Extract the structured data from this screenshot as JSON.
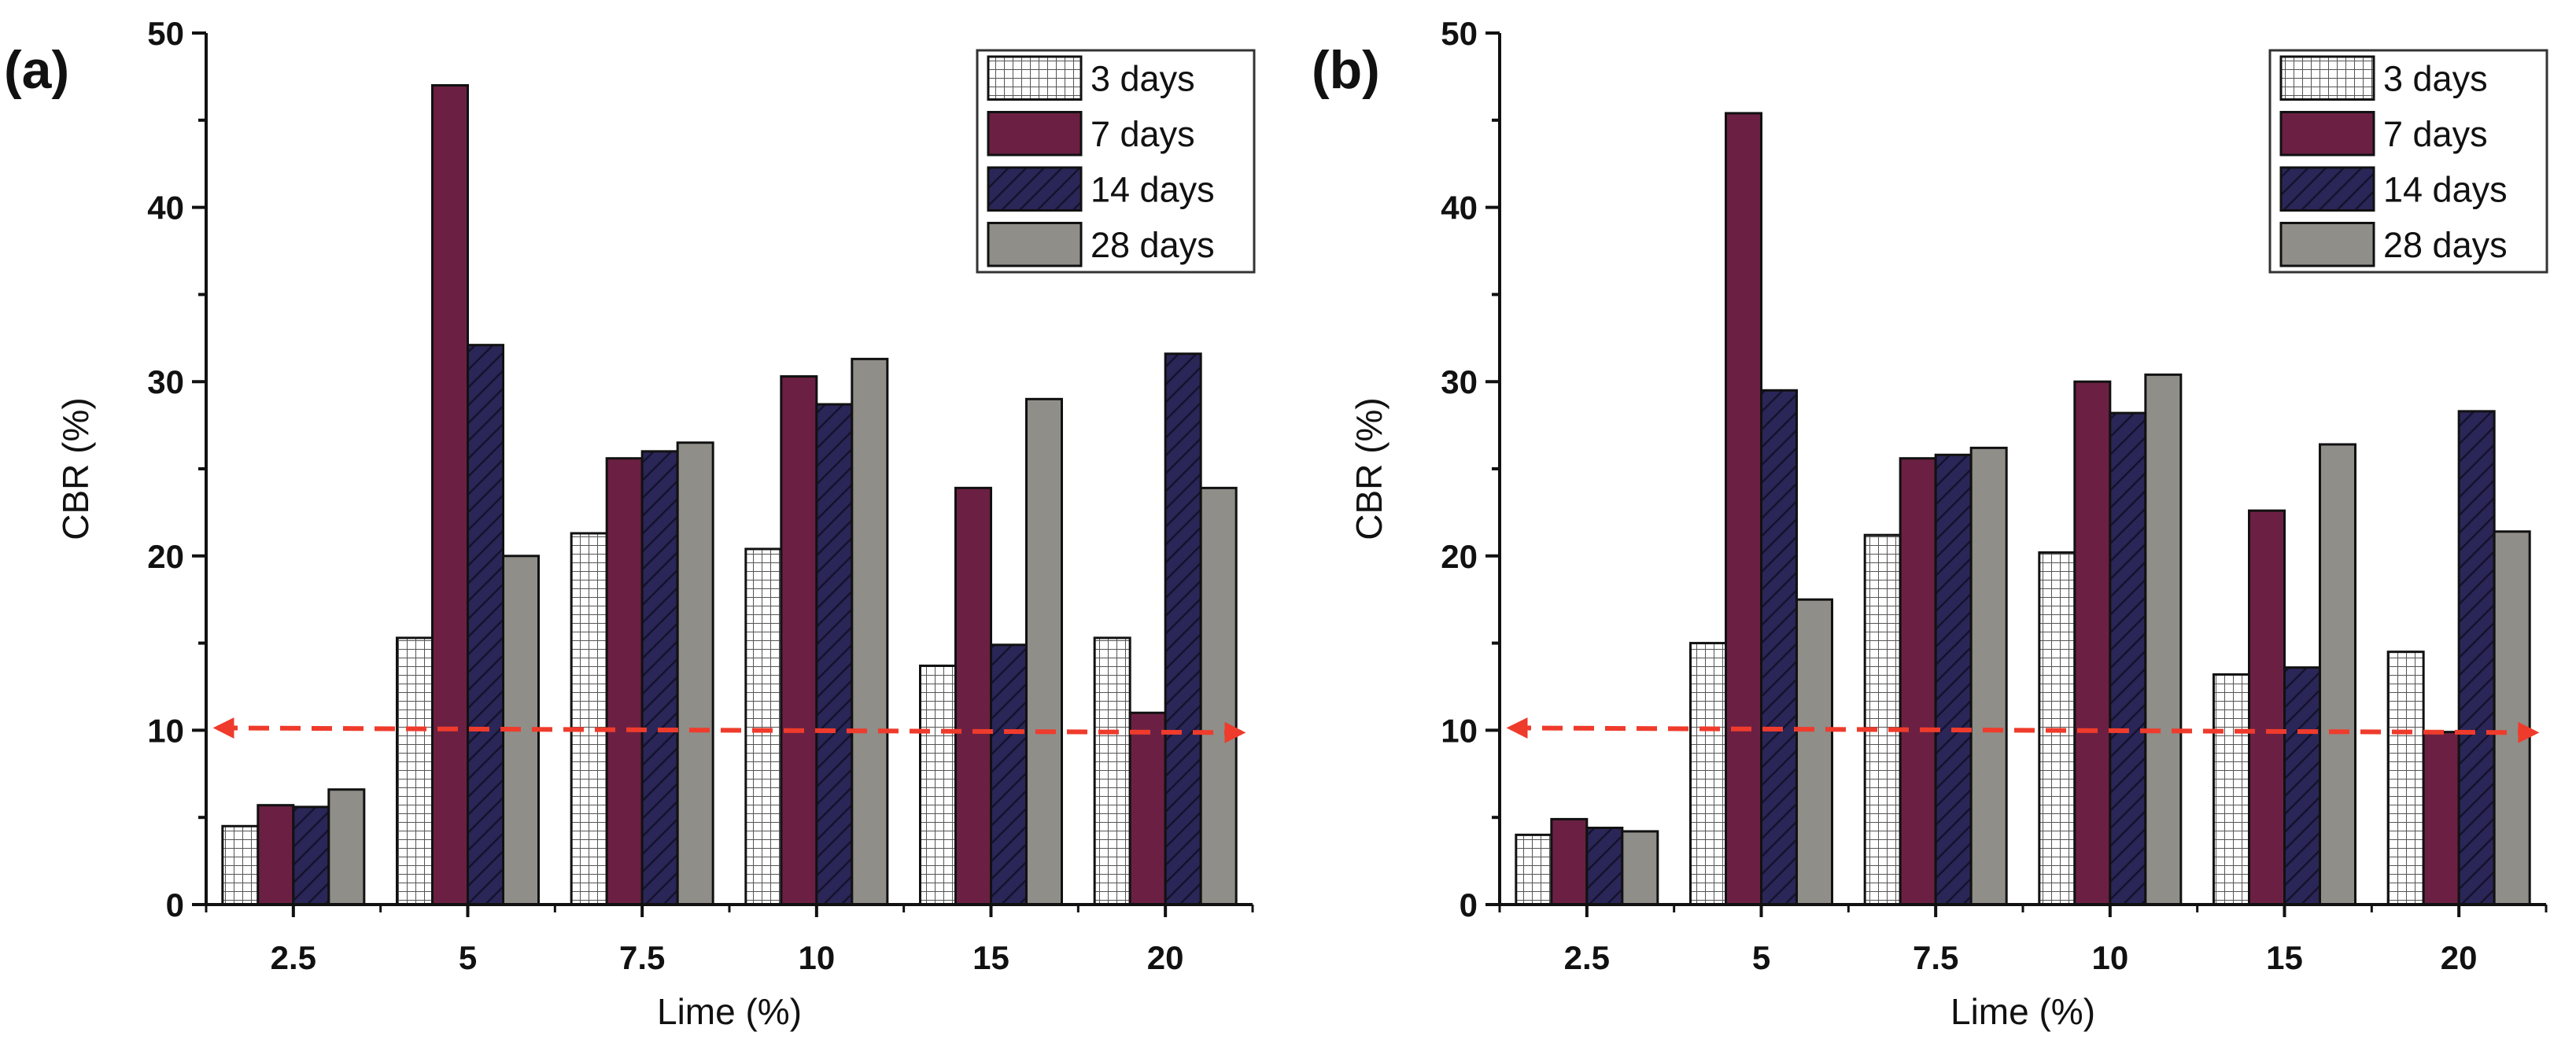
{
  "chart_data": [
    {
      "type": "bar",
      "panel_label": "(a)",
      "title": "",
      "xlabel": "Lime (%)",
      "ylabel": "CBR (%)",
      "ylim": [
        0,
        50
      ],
      "yticks": [
        "0",
        "10",
        "20",
        "30",
        "40",
        "50"
      ],
      "categories": [
        "2.5",
        "5",
        "7.5",
        "10",
        "15",
        "20"
      ],
      "series": [
        {
          "name": "3 days",
          "values": [
            4.5,
            15.3,
            21.3,
            20.4,
            13.7,
            15.3
          ]
        },
        {
          "name": "7 days",
          "values": [
            5.7,
            47.0,
            25.6,
            30.3,
            23.9,
            11.0
          ]
        },
        {
          "name": "14 days",
          "values": [
            5.6,
            32.1,
            26.0,
            28.7,
            14.9,
            31.6
          ]
        },
        {
          "name": "28 days",
          "values": [
            6.6,
            20.0,
            26.5,
            31.3,
            29.0,
            23.9
          ]
        }
      ],
      "reference_line": {
        "value": 10,
        "style": "dashed",
        "arrows": "both"
      },
      "legend_position": "top-right"
    },
    {
      "type": "bar",
      "panel_label": "(b)",
      "title": "",
      "xlabel": "Lime (%)",
      "ylabel": "CBR (%)",
      "ylim": [
        0,
        50
      ],
      "yticks": [
        "0",
        "10",
        "20",
        "30",
        "40",
        "50"
      ],
      "categories": [
        "2.5",
        "5",
        "7.5",
        "10",
        "15",
        "20"
      ],
      "series": [
        {
          "name": "3 days",
          "values": [
            4.0,
            15.0,
            21.2,
            20.2,
            13.2,
            14.5
          ]
        },
        {
          "name": "7 days",
          "values": [
            4.9,
            45.4,
            25.6,
            30.0,
            22.6,
            9.9
          ]
        },
        {
          "name": "14 days",
          "values": [
            4.4,
            29.5,
            25.8,
            28.2,
            13.6,
            28.3
          ]
        },
        {
          "name": "28 days",
          "values": [
            4.2,
            17.5,
            26.2,
            30.4,
            26.4,
            21.4
          ]
        }
      ],
      "reference_line": {
        "value": 10,
        "style": "dashed",
        "arrows": "both"
      },
      "legend_position": "top-right"
    }
  ],
  "colors": {
    "3 days": "#ffffff",
    "7 days": "#6b2043",
    "14 days": "#2a2657",
    "28 days": "#8f8e89",
    "reference_line": "#ef3b2c",
    "axis": "#111111"
  }
}
